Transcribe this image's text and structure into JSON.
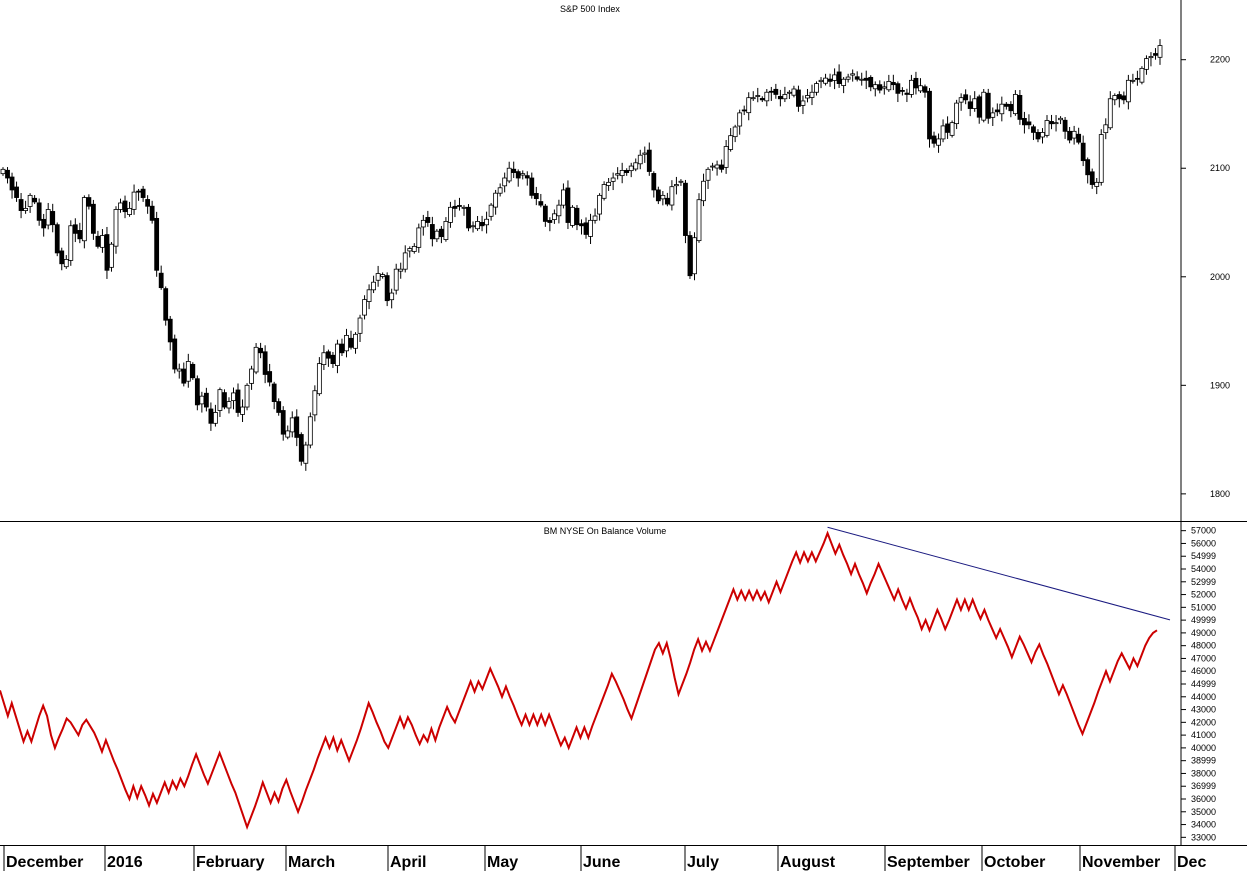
{
  "chart_data": [
    {
      "type": "candlestick",
      "title": "S&P 500 Index",
      "y_ticks": [
        1800,
        1900,
        2000,
        2100,
        2200
      ],
      "ylim": [
        1775,
        2255
      ],
      "up_color": "#ffffff",
      "down_color": "#000000",
      "wick_color": "#000000",
      "closes": [
        2099,
        2091,
        2080,
        2073,
        2061,
        2063,
        2075,
        2069,
        2052,
        2045,
        2062,
        2048,
        2022,
        2012,
        2016,
        2047,
        2040,
        2035,
        2073,
        2065,
        2040,
        2028,
        2038,
        2006,
        2030,
        2062,
        2068,
        2060,
        2063,
        2078,
        2078,
        2073,
        2065,
        2052,
        2006,
        1990,
        1960,
        1940,
        1915,
        1915,
        1902,
        1922,
        1907,
        1882,
        1890,
        1880,
        1865,
        1875,
        1896,
        1880,
        1885,
        1893,
        1875,
        1880,
        1900,
        1915,
        1935,
        1930,
        1910,
        1903,
        1885,
        1875,
        1855,
        1858,
        1870,
        1852,
        1830,
        1845,
        1871,
        1895,
        1920,
        1930,
        1925,
        1920,
        1938,
        1930,
        1946,
        1935,
        1947,
        1962,
        1979,
        1988,
        1995,
        2003,
        2002,
        1978,
        1985,
        2007,
        2007,
        2022,
        2026,
        2028,
        2045,
        2052,
        2050,
        2035,
        2042,
        2037,
        2051,
        2064,
        2063,
        2065,
        2064,
        2045,
        2047,
        2051,
        2047,
        2053,
        2066,
        2077,
        2082,
        2091,
        2100,
        2096,
        2091,
        2095,
        2091,
        2075,
        2072,
        2066,
        2051,
        2050,
        2058,
        2066,
        2080,
        2050,
        2064,
        2048,
        2047,
        2039,
        2052,
        2056,
        2075,
        2085,
        2087,
        2091,
        2095,
        2098,
        2096,
        2102,
        2105,
        2112,
        2114,
        2097,
        2080,
        2070,
        2075,
        2067,
        2083,
        2085,
        2088,
        2038,
        2001,
        2036,
        2071,
        2088,
        2099,
        2102,
        2103,
        2099,
        2120,
        2130,
        2138,
        2151,
        2153,
        2165,
        2165,
        2167,
        2163,
        2170,
        2170,
        2168,
        2164,
        2168,
        2170,
        2173,
        2157,
        2162,
        2167,
        2170,
        2178,
        2181,
        2183,
        2180,
        2186,
        2178,
        2182,
        2184,
        2187,
        2182,
        2182,
        2181,
        2175,
        2177,
        2172,
        2175,
        2180,
        2177,
        2169,
        2171,
        2168,
        2181,
        2174,
        2176,
        2170,
        2127,
        2123,
        2127,
        2139,
        2133,
        2142,
        2160,
        2165,
        2163,
        2155,
        2164,
        2147,
        2170,
        2146,
        2151,
        2152,
        2159,
        2157,
        2153,
        2168,
        2145,
        2140,
        2140,
        2133,
        2127,
        2133,
        2144,
        2141,
        2142,
        2146,
        2134,
        2126,
        2134,
        2124,
        2107,
        2094,
        2085,
        2087,
        2131,
        2140,
        2164,
        2167,
        2164,
        2163,
        2181,
        2181,
        2182,
        2192,
        2201,
        2203,
        2204,
        2213
      ]
    },
    {
      "type": "line",
      "title": "BM NYSE On Balance Volume",
      "line_color": "#cc0000",
      "y_ticks": [
        33000,
        34000,
        35000,
        36000,
        36999,
        38000,
        38999,
        40000,
        41000,
        42000,
        43000,
        44000,
        44999,
        46000,
        47000,
        48000,
        49000,
        49999,
        51000,
        52000,
        52999,
        54000,
        54999,
        56000,
        57000
      ],
      "ylim": [
        32400,
        57600
      ],
      "values": [
        44500,
        43500,
        42500,
        43500,
        42500,
        41500,
        40500,
        41300,
        40500,
        41500,
        42500,
        43300,
        42500,
        41000,
        40000,
        40800,
        41500,
        42300,
        42000,
        41500,
        41000,
        41800,
        42200,
        41700,
        41200,
        40500,
        39700,
        40600,
        39800,
        39000,
        38300,
        37500,
        36700,
        36000,
        37000,
        36100,
        37000,
        36300,
        35500,
        36400,
        35700,
        36500,
        37300,
        36500,
        37400,
        36800,
        37600,
        37000,
        37800,
        38700,
        39500,
        38700,
        37900,
        37200,
        38000,
        38800,
        39600,
        38800,
        38000,
        37200,
        36500,
        35600,
        34700,
        33800,
        34600,
        35400,
        36300,
        37300,
        36500,
        35700,
        36500,
        35800,
        36800,
        37500,
        36600,
        35800,
        35000,
        35800,
        36700,
        37500,
        38300,
        39200,
        40000,
        40800,
        40000,
        40800,
        39800,
        40600,
        39800,
        39000,
        39800,
        40600,
        41500,
        42500,
        43500,
        42800,
        42000,
        41300,
        40500,
        40000,
        40800,
        41600,
        42400,
        41600,
        42400,
        41800,
        41000,
        40300,
        41000,
        40500,
        41500,
        40600,
        41600,
        42400,
        43200,
        42500,
        42000,
        42800,
        43600,
        44400,
        45200,
        44400,
        45200,
        44600,
        45400,
        46200,
        45500,
        44800,
        44000,
        44800,
        44000,
        43300,
        42500,
        41800,
        42600,
        41800,
        42600,
        41800,
        42600,
        41800,
        42600,
        41800,
        41000,
        40200,
        40800,
        40000,
        40800,
        41600,
        40800,
        41600,
        40800,
        41700,
        42500,
        43300,
        44100,
        44900,
        45800,
        45200,
        44500,
        43800,
        43000,
        42300,
        43200,
        44100,
        45000,
        45900,
        46800,
        47700,
        48200,
        47400,
        48200,
        47000,
        45500,
        44200,
        45000,
        45800,
        46700,
        47700,
        48500,
        47600,
        48300,
        47600,
        48400,
        49200,
        50000,
        50800,
        51600,
        52400,
        51600,
        52300,
        51600,
        52300,
        51600,
        52300,
        51600,
        52200,
        51400,
        52200,
        53000,
        52200,
        53000,
        53800,
        54600,
        55300,
        54500,
        55300,
        54600,
        55300,
        54600,
        55300,
        56000,
        56800,
        56000,
        55200,
        55900,
        55100,
        54400,
        53600,
        54400,
        53600,
        52900,
        52100,
        52900,
        53600,
        54400,
        53700,
        53000,
        52300,
        51600,
        52400,
        51600,
        50900,
        51700,
        50900,
        50200,
        49300,
        50000,
        49200,
        50000,
        50800,
        50100,
        49300,
        50000,
        50800,
        51600,
        50800,
        51600,
        50800,
        51600,
        50800,
        50100,
        50800,
        50000,
        49300,
        48600,
        49300,
        48600,
        47900,
        47100,
        47900,
        48700,
        48100,
        47400,
        46700,
        47500,
        48100,
        47300,
        46600,
        45800,
        45000,
        44200,
        44900,
        44200,
        43400,
        42600,
        41800,
        41100,
        41900,
        42700,
        43500,
        44400,
        45200,
        46000,
        45200,
        46000,
        46800,
        47400,
        46800,
        46200,
        47000,
        46400,
        47200,
        48000,
        48600,
        49000,
        49200
      ]
    }
  ],
  "x_axis": {
    "months": [
      "December",
      "2016",
      "February",
      "March",
      "April",
      "May",
      "June",
      "July",
      "August",
      "September",
      "October",
      "November",
      "Dec"
    ]
  }
}
